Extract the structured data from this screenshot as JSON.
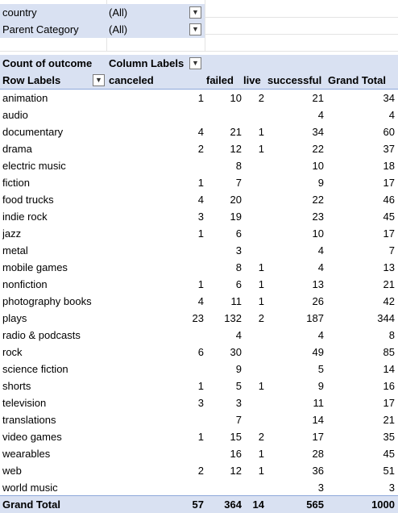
{
  "filters": [
    {
      "label": "country",
      "value": "(All)"
    },
    {
      "label": "Parent Category",
      "value": "(All)"
    }
  ],
  "pivot": {
    "value_label": "Count of outcome",
    "column_labels": "Column Labels",
    "row_labels": "Row Labels",
    "columns": [
      "canceled",
      "failed",
      "live",
      "successful",
      "Grand Total"
    ],
    "rows": [
      {
        "label": "animation",
        "values": [
          "1",
          "10",
          "2",
          "21",
          "34"
        ]
      },
      {
        "label": "audio",
        "values": [
          "",
          "",
          "",
          "4",
          "4"
        ]
      },
      {
        "label": "documentary",
        "values": [
          "4",
          "21",
          "1",
          "34",
          "60"
        ]
      },
      {
        "label": "drama",
        "values": [
          "2",
          "12",
          "1",
          "22",
          "37"
        ]
      },
      {
        "label": "electric music",
        "values": [
          "",
          "8",
          "",
          "10",
          "18"
        ]
      },
      {
        "label": "fiction",
        "values": [
          "1",
          "7",
          "",
          "9",
          "17"
        ]
      },
      {
        "label": "food trucks",
        "values": [
          "4",
          "20",
          "",
          "22",
          "46"
        ]
      },
      {
        "label": "indie rock",
        "values": [
          "3",
          "19",
          "",
          "23",
          "45"
        ]
      },
      {
        "label": "jazz",
        "values": [
          "1",
          "6",
          "",
          "10",
          "17"
        ]
      },
      {
        "label": "metal",
        "values": [
          "",
          "3",
          "",
          "4",
          "7"
        ]
      },
      {
        "label": "mobile games",
        "values": [
          "",
          "8",
          "1",
          "4",
          "13"
        ]
      },
      {
        "label": "nonfiction",
        "values": [
          "1",
          "6",
          "1",
          "13",
          "21"
        ]
      },
      {
        "label": "photography books",
        "values": [
          "4",
          "11",
          "1",
          "26",
          "42"
        ]
      },
      {
        "label": "plays",
        "values": [
          "23",
          "132",
          "2",
          "187",
          "344"
        ]
      },
      {
        "label": "radio & podcasts",
        "values": [
          "",
          "4",
          "",
          "4",
          "8"
        ]
      },
      {
        "label": "rock",
        "values": [
          "6",
          "30",
          "",
          "49",
          "85"
        ]
      },
      {
        "label": "science fiction",
        "values": [
          "",
          "9",
          "",
          "5",
          "14"
        ]
      },
      {
        "label": "shorts",
        "values": [
          "1",
          "5",
          "1",
          "9",
          "16"
        ]
      },
      {
        "label": "television",
        "values": [
          "3",
          "3",
          "",
          "11",
          "17"
        ]
      },
      {
        "label": "translations",
        "values": [
          "",
          "7",
          "",
          "14",
          "21"
        ]
      },
      {
        "label": "video games",
        "values": [
          "1",
          "15",
          "2",
          "17",
          "35"
        ]
      },
      {
        "label": "wearables",
        "values": [
          "",
          "16",
          "1",
          "28",
          "45"
        ]
      },
      {
        "label": "web",
        "values": [
          "2",
          "12",
          "1",
          "36",
          "51"
        ]
      },
      {
        "label": "world music",
        "values": [
          "",
          "",
          "",
          "3",
          "3"
        ]
      }
    ],
    "grand_total": {
      "label": "Grand Total",
      "values": [
        "57",
        "364",
        "14",
        "565",
        "1000"
      ]
    }
  },
  "colors": {
    "header_fill": "#d9e1f2",
    "total_border": "#8ea9db",
    "gridline": "#e3e3e3"
  },
  "icons": {
    "dropdown": "chevron-down-icon"
  }
}
